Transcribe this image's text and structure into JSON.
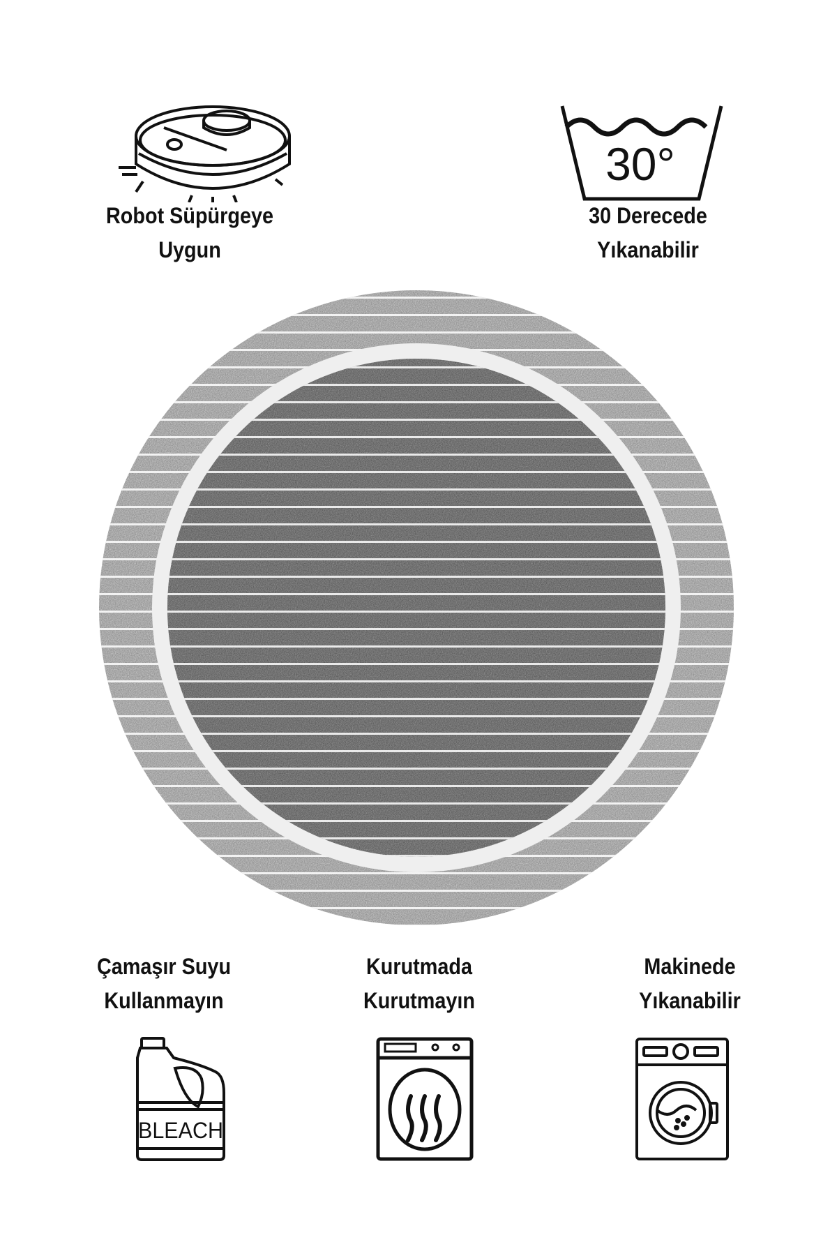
{
  "features": {
    "robot": {
      "line1": "Robot Süpürgeye",
      "line2": "Uygun",
      "icon": "robot-vacuum-icon"
    },
    "wash30": {
      "line1": "30 Derecede",
      "line2": "Yıkanabilir",
      "icon": "wash-30-icon",
      "temperature": "30°"
    },
    "bleach": {
      "line1": "Çamaşır Suyu",
      "line2": "Kullanmayın",
      "icon": "bleach-bottle-icon",
      "bottle_text": "BLEACH"
    },
    "dryer": {
      "line1": "Kurutmada",
      "line2": "Kurutmayın",
      "icon": "tumble-dryer-icon"
    },
    "machine": {
      "line1": "Makinede",
      "line2": "Yıkanabilir",
      "icon": "washing-machine-icon"
    }
  },
  "product": {
    "shape": "round rug",
    "colors": {
      "outer": "#c4c4c4",
      "inner": "#8c8c8c",
      "ring": "#efefef"
    }
  }
}
